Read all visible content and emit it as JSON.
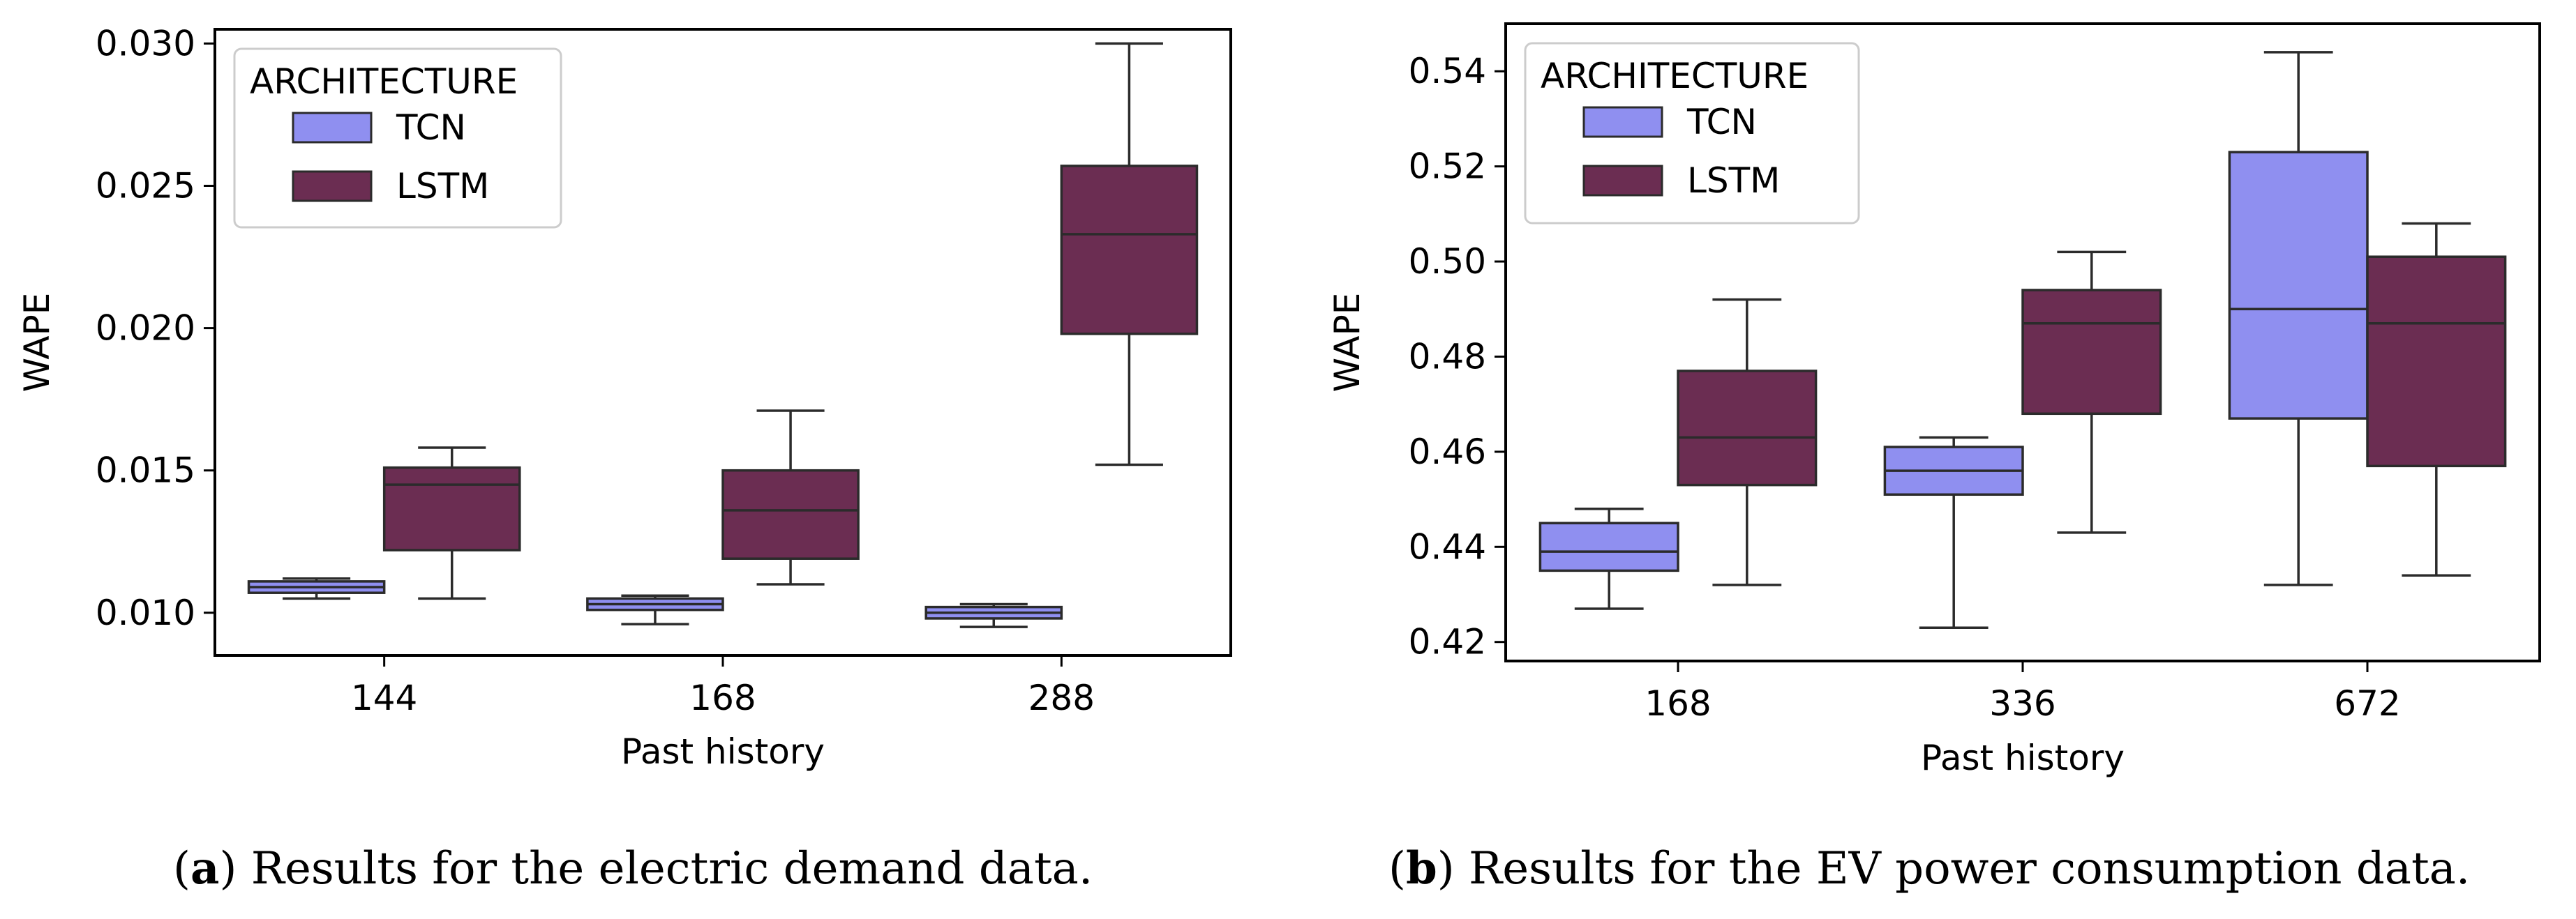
{
  "colors": {
    "tcn": "#8f8ff0",
    "lstm": "#6b2d52",
    "axis": "#000000",
    "whisker": "#2b2b2b"
  },
  "chart_data": [
    {
      "id": "a",
      "type": "box",
      "xlabel": "Past history",
      "ylabel": "WAPE",
      "categories": [
        "144",
        "168",
        "288"
      ],
      "ylim": [
        0.0085,
        0.0305
      ],
      "yticks": [
        0.01,
        0.015,
        0.02,
        0.025,
        0.03
      ],
      "ytick_labels": [
        "0.010",
        "0.015",
        "0.020",
        "0.025",
        "0.030"
      ],
      "legend": {
        "title": "ARCHITECTURE",
        "entries": [
          "TCN",
          "LSTM"
        ],
        "position": "top-left"
      },
      "series": [
        {
          "name": "TCN",
          "color_key": "tcn",
          "boxes": [
            {
              "whislo": 0.0105,
              "q1": 0.0107,
              "med": 0.0109,
              "q3": 0.0111,
              "whishi": 0.0112
            },
            {
              "whislo": 0.0096,
              "q1": 0.0101,
              "med": 0.0103,
              "q3": 0.0105,
              "whishi": 0.0106
            },
            {
              "whislo": 0.0095,
              "q1": 0.0098,
              "med": 0.01,
              "q3": 0.0102,
              "whishi": 0.0103
            }
          ]
        },
        {
          "name": "LSTM",
          "color_key": "lstm",
          "boxes": [
            {
              "whislo": 0.0105,
              "q1": 0.0122,
              "med": 0.0145,
              "q3": 0.0151,
              "whishi": 0.0158
            },
            {
              "whislo": 0.011,
              "q1": 0.0119,
              "med": 0.0136,
              "q3": 0.015,
              "whishi": 0.0171
            },
            {
              "whislo": 0.0152,
              "q1": 0.0198,
              "med": 0.0233,
              "q3": 0.0257,
              "whishi": 0.03
            }
          ]
        }
      ]
    },
    {
      "id": "b",
      "type": "box",
      "xlabel": "Past history",
      "ylabel": "WAPE",
      "categories": [
        "168",
        "336",
        "672"
      ],
      "ylim": [
        0.416,
        0.55
      ],
      "yticks": [
        0.42,
        0.44,
        0.46,
        0.48,
        0.5,
        0.52,
        0.54
      ],
      "ytick_labels": [
        "0.42",
        "0.44",
        "0.46",
        "0.48",
        "0.50",
        "0.52",
        "0.54"
      ],
      "legend": {
        "title": "ARCHITECTURE",
        "entries": [
          "TCN",
          "LSTM"
        ],
        "position": "top-left"
      },
      "series": [
        {
          "name": "TCN",
          "color_key": "tcn",
          "boxes": [
            {
              "whislo": 0.427,
              "q1": 0.435,
              "med": 0.439,
              "q3": 0.445,
              "whishi": 0.448
            },
            {
              "whislo": 0.423,
              "q1": 0.451,
              "med": 0.456,
              "q3": 0.461,
              "whishi": 0.463
            },
            {
              "whislo": 0.432,
              "q1": 0.467,
              "med": 0.49,
              "q3": 0.523,
              "whishi": 0.544
            }
          ]
        },
        {
          "name": "LSTM",
          "color_key": "lstm",
          "boxes": [
            {
              "whislo": 0.432,
              "q1": 0.453,
              "med": 0.463,
              "q3": 0.477,
              "whishi": 0.492
            },
            {
              "whislo": 0.443,
              "q1": 0.468,
              "med": 0.487,
              "q3": 0.494,
              "whishi": 0.502
            },
            {
              "whislo": 0.434,
              "q1": 0.457,
              "med": 0.487,
              "q3": 0.501,
              "whishi": 0.508
            }
          ]
        }
      ]
    }
  ],
  "captions": [
    {
      "letter": "a",
      "text": ") Results for the electric demand data."
    },
    {
      "letter": "b",
      "text": ") Results for the EV power consumption data."
    }
  ]
}
